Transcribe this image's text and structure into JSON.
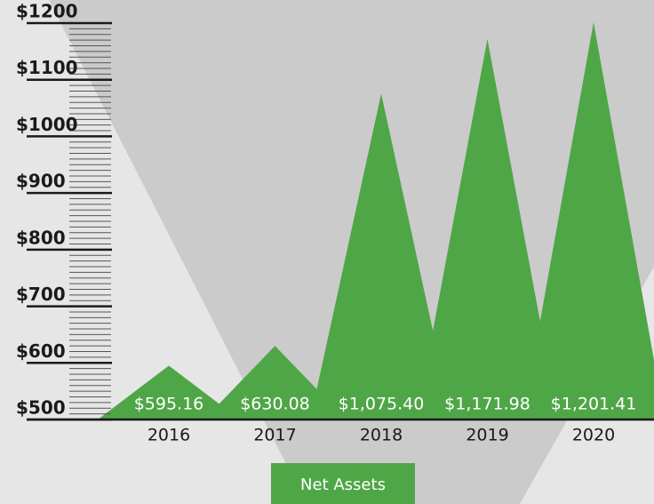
{
  "chart_data": {
    "type": "area",
    "categories": [
      "2016",
      "2017",
      "2018",
      "2019",
      "2020"
    ],
    "series": [
      {
        "name": "Net Assets",
        "color": "#4fa647",
        "values": [
          595.16,
          630.08,
          1075.4,
          1171.98,
          1201.41
        ],
        "value_labels": [
          "$595.16",
          "$630.08",
          "$1,075.40",
          "$1,171.98",
          "$1,201.41"
        ]
      }
    ],
    "ylim": [
      500,
      1200
    ],
    "yticks": [
      {
        "value": 500,
        "label": "$500"
      },
      {
        "value": 600,
        "label": "$600"
      },
      {
        "value": 700,
        "label": "$700"
      },
      {
        "value": 800,
        "label": "$800"
      },
      {
        "value": 900,
        "label": "$900"
      },
      {
        "value": 1000,
        "label": "$1000"
      },
      {
        "value": 1100,
        "label": "$1100"
      },
      {
        "value": 1200,
        "label": "$1200"
      }
    ],
    "minor_yticks": [
      510,
      520,
      530,
      540,
      550,
      560,
      570,
      580,
      590,
      610,
      620,
      630,
      640,
      650,
      660,
      670,
      680,
      690,
      710,
      720,
      730,
      740,
      750,
      760,
      770,
      780,
      790,
      810,
      820,
      830,
      840,
      850,
      860,
      870,
      880,
      890,
      910,
      920,
      930,
      940,
      950,
      960,
      970,
      980,
      990,
      1010,
      1020,
      1030,
      1040,
      1050,
      1060,
      1070,
      1080,
      1090,
      1110,
      1120,
      1130,
      1140,
      1150,
      1160,
      1170,
      1180,
      1190
    ],
    "legend": "bottom"
  }
}
